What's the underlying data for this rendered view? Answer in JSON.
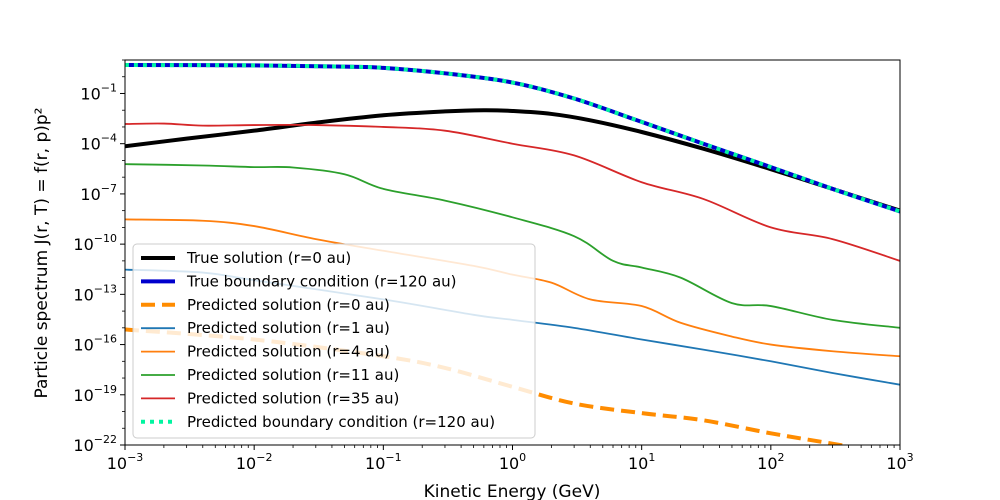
{
  "chart_data": {
    "type": "line",
    "xlabel": "Kinetic Energy (GeV)",
    "ylabel": "Particle spectrum J(r, T) = f(r, p)p²",
    "x_scale": "log",
    "y_scale": "log",
    "xlim": [
      0.001,
      1000
    ],
    "ylim": [
      1e-22,
      10
    ],
    "x_ticks": [
      {
        "value": 0.001,
        "base": "10",
        "exp": "−3"
      },
      {
        "value": 0.01,
        "base": "10",
        "exp": "−2"
      },
      {
        "value": 0.1,
        "base": "10",
        "exp": "−1"
      },
      {
        "value": 1,
        "base": "10",
        "exp": "0"
      },
      {
        "value": 10,
        "base": "10",
        "exp": "1"
      },
      {
        "value": 100,
        "base": "10",
        "exp": "2"
      },
      {
        "value": 1000,
        "base": "10",
        "exp": "3"
      }
    ],
    "y_ticks": [
      {
        "value": 1e-22,
        "base": "10",
        "exp": "−22"
      },
      {
        "value": 1e-19,
        "base": "10",
        "exp": "−19"
      },
      {
        "value": 1e-16,
        "base": "10",
        "exp": "−16"
      },
      {
        "value": 1e-13,
        "base": "10",
        "exp": "−13"
      },
      {
        "value": 1e-10,
        "base": "10",
        "exp": "−10"
      },
      {
        "value": 1e-07,
        "base": "10",
        "exp": "−7"
      },
      {
        "value": 0.0001,
        "base": "10",
        "exp": "−4"
      },
      {
        "value": 0.1,
        "base": "10",
        "exp": "−1"
      }
    ],
    "grid": false,
    "legend_position": "lower-left",
    "series": [
      {
        "name": "True solution (r=0 au)",
        "color": "#000000",
        "width": 4,
        "dash": "",
        "points": [
          [
            0.001,
            7e-05
          ],
          [
            0.003,
            0.0002
          ],
          [
            0.01,
            0.0006
          ],
          [
            0.03,
            0.0018
          ],
          [
            0.1,
            0.005
          ],
          [
            0.3,
            0.0085
          ],
          [
            0.6,
            0.01
          ],
          [
            1,
            0.009
          ],
          [
            2,
            0.006
          ],
          [
            4,
            0.0025
          ],
          [
            10,
            0.0005
          ],
          [
            30,
            5e-05
          ],
          [
            100,
            3e-06
          ],
          [
            300,
            2e-07
          ],
          [
            1000,
            1e-08
          ]
        ]
      },
      {
        "name": "True boundary condition (r=120 au)",
        "color": "#0000cd",
        "width": 4,
        "dash": "",
        "points": [
          [
            0.001,
            5
          ],
          [
            0.01,
            4.8
          ],
          [
            0.05,
            4
          ],
          [
            0.1,
            3.4
          ],
          [
            0.3,
            1.6
          ],
          [
            1,
            0.45
          ],
          [
            3,
            0.05
          ],
          [
            10,
            0.002
          ],
          [
            30,
            0.0001
          ],
          [
            100,
            4e-06
          ],
          [
            300,
            2e-07
          ],
          [
            1000,
            9e-09
          ]
        ]
      },
      {
        "name": "Predicted solution (r=0 au)",
        "color": "#ff8c00",
        "width": 4,
        "dash": "14,7",
        "points": [
          [
            0.001,
            8e-16
          ],
          [
            0.01,
            2e-16
          ],
          [
            0.1,
            2e-17
          ],
          [
            0.3,
            4e-18
          ],
          [
            1,
            3e-19
          ],
          [
            3,
            3e-20
          ],
          [
            10,
            8e-21
          ],
          [
            30,
            3e-21
          ],
          [
            100,
            5e-22
          ],
          [
            300,
            1.2e-22
          ],
          [
            1000,
            2.5e-23
          ]
        ]
      },
      {
        "name": "Predicted solution (r=1 au)",
        "color": "#1f77b4",
        "width": 1.8,
        "dash": "",
        "points": [
          [
            0.001,
            3e-12
          ],
          [
            0.004,
            2e-12
          ],
          [
            0.01,
            7e-13
          ],
          [
            0.1,
            5e-14
          ],
          [
            0.5,
            6e-15
          ],
          [
            1,
            3e-15
          ],
          [
            3,
            1e-15
          ],
          [
            10,
            2e-16
          ],
          [
            30,
            5e-17
          ],
          [
            100,
            1e-17
          ],
          [
            300,
            2e-18
          ],
          [
            1000,
            4e-19
          ]
        ]
      },
      {
        "name": "Predicted solution (r=4 au)",
        "color": "#ff7f0e",
        "width": 1.8,
        "dash": "",
        "points": [
          [
            0.001,
            3e-09
          ],
          [
            0.004,
            2.5e-09
          ],
          [
            0.01,
            1.2e-09
          ],
          [
            0.03,
            2e-10
          ],
          [
            0.1,
            4e-11
          ],
          [
            0.5,
            5e-12
          ],
          [
            1,
            1.5e-12
          ],
          [
            2,
            5e-13
          ],
          [
            4,
            5e-14
          ],
          [
            10,
            2e-14
          ],
          [
            20,
            2e-15
          ],
          [
            50,
            3e-16
          ],
          [
            100,
            1e-16
          ],
          [
            300,
            4e-17
          ],
          [
            1000,
            2e-17
          ]
        ]
      },
      {
        "name": "Predicted solution (r=11 au)",
        "color": "#2ca02c",
        "width": 1.8,
        "dash": "",
        "points": [
          [
            0.001,
            6e-06
          ],
          [
            0.004,
            5e-06
          ],
          [
            0.01,
            4e-06
          ],
          [
            0.02,
            3.8e-06
          ],
          [
            0.05,
            1.5e-06
          ],
          [
            0.1,
            2e-07
          ],
          [
            0.3,
            4e-08
          ],
          [
            1,
            4e-09
          ],
          [
            3,
            3e-10
          ],
          [
            6,
            1e-11
          ],
          [
            10,
            4e-12
          ],
          [
            20,
            1e-12
          ],
          [
            50,
            3e-14
          ],
          [
            100,
            2e-14
          ],
          [
            300,
            3e-15
          ],
          [
            1000,
            1e-15
          ]
        ]
      },
      {
        "name": "Predicted solution (r=35 au)",
        "color": "#d62728",
        "width": 1.8,
        "dash": "",
        "points": [
          [
            0.001,
            0.0015
          ],
          [
            0.002,
            0.0016
          ],
          [
            0.004,
            0.0012
          ],
          [
            0.01,
            0.0013
          ],
          [
            0.03,
            0.0013
          ],
          [
            0.1,
            0.001
          ],
          [
            0.3,
            0.0006
          ],
          [
            1,
            0.0001
          ],
          [
            3,
            2e-05
          ],
          [
            10,
            5e-07
          ],
          [
            30,
            5e-08
          ],
          [
            100,
            1e-09
          ],
          [
            300,
            2e-10
          ],
          [
            1000,
            1e-11
          ]
        ]
      },
      {
        "name": "Predicted boundary condition (r=120 au)",
        "color": "#00f5a0",
        "width": 4,
        "dash": "4,5",
        "points": [
          [
            0.001,
            5
          ],
          [
            0.01,
            4.8
          ],
          [
            0.05,
            4
          ],
          [
            0.1,
            3.4
          ],
          [
            0.3,
            1.6
          ],
          [
            1,
            0.45
          ],
          [
            3,
            0.05
          ],
          [
            10,
            0.002
          ],
          [
            30,
            0.0001
          ],
          [
            100,
            4e-06
          ],
          [
            300,
            2e-07
          ],
          [
            1000,
            9e-09
          ]
        ]
      }
    ]
  }
}
